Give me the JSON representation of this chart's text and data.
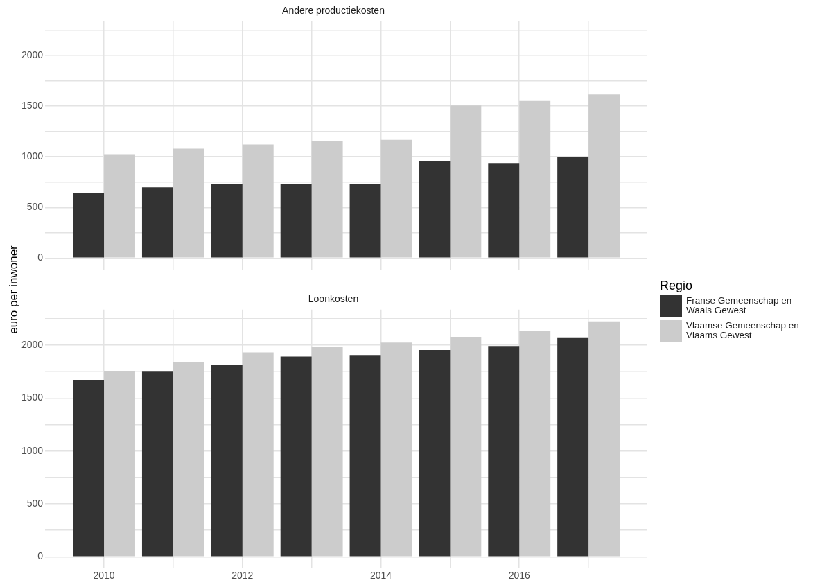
{
  "chart_data": [
    {
      "type": "bar",
      "title": "Andere productiekosten",
      "ylabel": "euro per inwoner",
      "grid": true,
      "tick_labels": "y",
      "x": [
        2010,
        2011,
        2012,
        2013,
        2014,
        2015,
        2016,
        2017
      ],
      "xlim": [
        2009.15,
        2017.85
      ],
      "xticks": [
        2010,
        {
          "value": 2011,
          "label": null
        },
        2012,
        {
          "value": 2013,
          "label": null
        },
        2014,
        {
          "value": 2015,
          "label": null
        },
        2016,
        {
          "value": 2017,
          "label": null
        }
      ],
      "ylim": [
        -111,
        2336
      ],
      "yticks": [
        0,
        {
          "value": 250,
          "label": null
        },
        500,
        {
          "value": 750,
          "label": null
        },
        1000,
        {
          "value": 1250,
          "label": null
        },
        1500,
        {
          "value": 1750,
          "label": null
        },
        2000,
        {
          "value": 2250,
          "label": null
        }
      ],
      "series": [
        {
          "color": "#333333",
          "values": [
            640,
            698,
            727,
            735,
            727,
            953,
            938,
            1000
          ]
        },
        {
          "color": "#cccccc",
          "values": [
            1025,
            1080,
            1120,
            1153,
            1167,
            1505,
            1550,
            1615
          ]
        }
      ]
    },
    {
      "type": "bar",
      "title": "Loonkosten",
      "legend_title": "Regio",
      "legend": "right",
      "grid": true,
      "x": [
        2010,
        2011,
        2012,
        2013,
        2014,
        2015,
        2016,
        2017
      ],
      "xlim": [
        2009.15,
        2017.85
      ],
      "xticks": [
        2010,
        {
          "value": 2011,
          "label": null
        },
        2012,
        {
          "value": 2013,
          "label": null
        },
        2014,
        {
          "value": 2015,
          "label": null
        },
        2016,
        {
          "value": 2017,
          "label": null
        }
      ],
      "ylim": [
        -111,
        2336
      ],
      "yticks": [
        0,
        {
          "value": 250,
          "label": null
        },
        500,
        {
          "value": 750,
          "label": null
        },
        1000,
        {
          "value": 1250,
          "label": null
        },
        1500,
        {
          "value": 1750,
          "label": null
        },
        2000,
        {
          "value": 2250,
          "label": null
        }
      ],
      "series": [
        {
          "name": "Franse Gemeenschap en Waals Gewest",
          "color": "#333333",
          "values": [
            1671,
            1750,
            1814,
            1893,
            1907,
            1954,
            1993,
            2075
          ]
        },
        {
          "name": "Vlaamse Gemeenschap en Vlaams Gewest",
          "color": "#cccccc",
          "values": [
            1757,
            1843,
            1932,
            1986,
            2025,
            2079,
            2136,
            2225
          ]
        }
      ]
    }
  ]
}
